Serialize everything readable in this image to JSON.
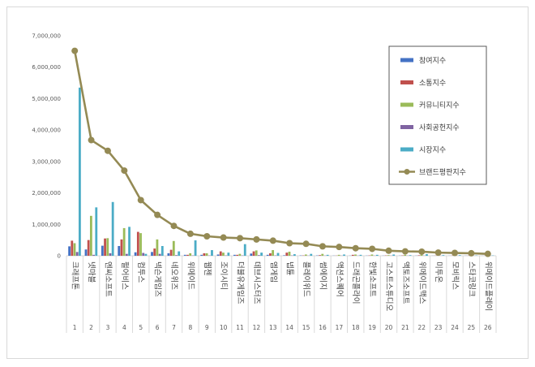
{
  "chart_data": {
    "type": "bar",
    "title": "",
    "xlabel": "",
    "ylabel": "",
    "ylim": [
      0,
      7000000
    ],
    "yticks": [
      "7,000,000",
      "6,000,000",
      "5,000,000",
      "4,000,000",
      "3,000,000",
      "2,000,000",
      "1,000,000",
      "0"
    ],
    "ytick_values": [
      7000000,
      6000000,
      5000000,
      4000000,
      3000000,
      2000000,
      1000000,
      0
    ],
    "grid": false,
    "legend_position": "top-right",
    "categories": [
      "크래프톤",
      "넷마블",
      "엔씨소프트",
      "펄어비스",
      "컴투스",
      "넥슨게임즈",
      "네오위즈",
      "위메이드",
      "웹젠",
      "조이시티",
      "더블유게임즈",
      "데브시스터즈",
      "엠게임",
      "넵튠",
      "플레이위드",
      "썸에이지",
      "액션스퀘어",
      "드래곤플라이",
      "한빛소프트",
      "고스트스튜디오",
      "액토즈소프트",
      "위메이드맥스",
      "미투온",
      "모비릭스",
      "스타코링크",
      "위메이드플레이"
    ],
    "indices": [
      "1",
      "2",
      "3",
      "4",
      "5",
      "6",
      "7",
      "8",
      "9",
      "10",
      "11",
      "12",
      "13",
      "14",
      "15",
      "16",
      "17",
      "18",
      "19",
      "20",
      "21",
      "22",
      "23",
      "24",
      "25",
      "26"
    ],
    "series": [
      {
        "name": "참여지수",
        "kind": "bar",
        "color": "#4472c4",
        "values": [
          300000,
          200000,
          320000,
          310000,
          110000,
          120000,
          80000,
          30000,
          30000,
          40000,
          30000,
          70000,
          30000,
          15000,
          10000,
          10000,
          5000,
          5000,
          5000,
          5000,
          5000,
          5000,
          3000,
          3000,
          3000,
          2000
        ]
      },
      {
        "name": "소통지수",
        "kind": "bar",
        "color": "#c0504d",
        "values": [
          480000,
          500000,
          550000,
          520000,
          760000,
          230000,
          190000,
          30000,
          80000,
          140000,
          30000,
          140000,
          80000,
          100000,
          10000,
          20000,
          5000,
          30000,
          10000,
          10000,
          10000,
          15000,
          5000,
          5000,
          5000,
          5000
        ]
      },
      {
        "name": "커뮤니티지수",
        "kind": "bar",
        "color": "#9bbb59",
        "values": [
          400000,
          1270000,
          560000,
          880000,
          720000,
          520000,
          470000,
          80000,
          80000,
          100000,
          60000,
          170000,
          180000,
          130000,
          40000,
          60000,
          30000,
          40000,
          40000,
          20000,
          30000,
          30000,
          10000,
          10000,
          10000,
          5000
        ]
      },
      {
        "name": "사회공헌지수",
        "kind": "bar",
        "color": "#8064a2",
        "values": [
          120000,
          30000,
          80000,
          60000,
          90000,
          60000,
          20000,
          10000,
          10000,
          10000,
          10000,
          20000,
          10000,
          10000,
          5000,
          5000,
          5000,
          5000,
          5000,
          5000,
          5000,
          5000,
          2000,
          2000,
          2000,
          2000
        ]
      },
      {
        "name": "시장지수",
        "kind": "bar",
        "color": "#4bacc6",
        "values": [
          5350000,
          1540000,
          1710000,
          920000,
          60000,
          310000,
          140000,
          490000,
          180000,
          100000,
          370000,
          100000,
          90000,
          50000,
          60000,
          30000,
          40000,
          30000,
          30000,
          40000,
          20000,
          50000,
          20000,
          20000,
          10000,
          10000
        ]
      },
      {
        "name": "브랜드평판지수",
        "kind": "line",
        "color": "#948a54",
        "values": [
          6520000,
          3680000,
          3340000,
          2710000,
          1770000,
          1300000,
          950000,
          700000,
          620000,
          580000,
          560000,
          520000,
          480000,
          400000,
          380000,
          300000,
          280000,
          240000,
          220000,
          160000,
          140000,
          130000,
          100000,
          90000,
          80000,
          60000
        ]
      }
    ]
  }
}
